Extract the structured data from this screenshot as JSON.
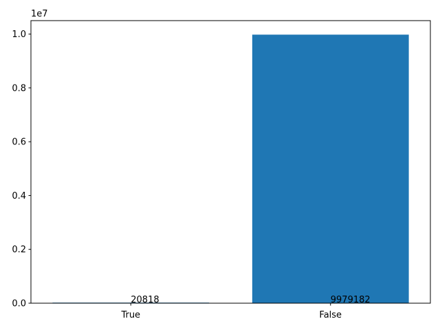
{
  "chart_data": {
    "type": "bar",
    "categories": [
      "True",
      "False"
    ],
    "values": [
      20818,
      9979182
    ],
    "data_labels": [
      "20818",
      "9979182"
    ],
    "title": "",
    "xlabel": "",
    "ylabel": "",
    "ylim": [
      0,
      10500000
    ],
    "y_ticks": [
      0,
      2000000,
      4000000,
      6000000,
      8000000,
      10000000
    ],
    "y_tick_labels": [
      "0.0",
      "0.2",
      "0.4",
      "0.6",
      "0.8",
      "1.0"
    ],
    "y_offset_label": "1e7",
    "grid": false,
    "legend": "none",
    "bar_color": "#1f77b4"
  }
}
